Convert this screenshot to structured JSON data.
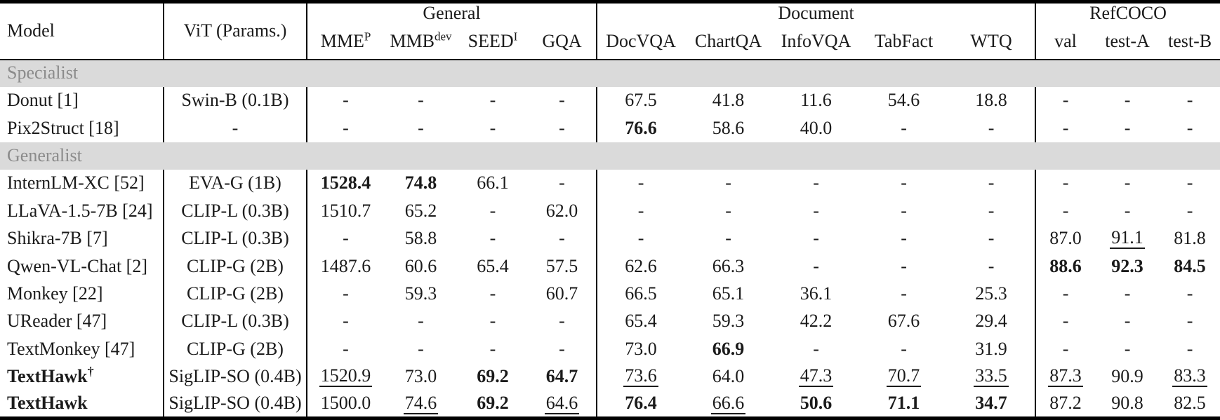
{
  "header": {
    "model_col": "Model",
    "vit_col": "ViT (Params.)",
    "groups": [
      {
        "label": "General",
        "cols": [
          {
            "text": "MME",
            "sup": "P"
          },
          {
            "text": "MMB",
            "sup": "dev"
          },
          {
            "text": "SEED",
            "sup": "I"
          },
          {
            "text": "GQA"
          }
        ]
      },
      {
        "label": "Document",
        "cols": [
          {
            "text": "DocVQA"
          },
          {
            "text": "ChartQA"
          },
          {
            "text": "InfoVQA"
          },
          {
            "text": "TabFact"
          },
          {
            "text": "WTQ"
          }
        ]
      },
      {
        "label": "RefCOCO",
        "cols": [
          {
            "text": "val"
          },
          {
            "text": "test-A"
          },
          {
            "text": "test-B"
          }
        ]
      }
    ]
  },
  "sections": [
    {
      "label": "Specialist",
      "rows": [
        {
          "model": {
            "text": "Donut [1]"
          },
          "vit": "Swin-B (0.1B)",
          "cells": [
            "-",
            "-",
            "-",
            "-",
            "67.5",
            "41.8",
            "11.6",
            "54.6",
            "18.8",
            "-",
            "-",
            "-"
          ]
        },
        {
          "model": {
            "text": "Pix2Struct [18]"
          },
          "vit": "-",
          "cells": [
            "-",
            "-",
            "-",
            "-",
            {
              "v": "76.6",
              "b": 1
            },
            "58.6",
            "40.0",
            "-",
            "-",
            "-",
            "-",
            "-"
          ]
        }
      ]
    },
    {
      "label": "Generalist",
      "rows": [
        {
          "model": {
            "text": "InternLM-XC [52]"
          },
          "vit": "EVA-G (1B)",
          "cells": [
            {
              "v": "1528.4",
              "b": 1
            },
            {
              "v": "74.8",
              "b": 1
            },
            "66.1",
            "-",
            "-",
            "-",
            "-",
            "-",
            "-",
            "-",
            "-",
            "-"
          ]
        },
        {
          "model": {
            "text": "LLaVA-1.5-7B [24]"
          },
          "vit": "CLIP-L (0.3B)",
          "cells": [
            "1510.7",
            "65.2",
            "-",
            "62.0",
            "-",
            "-",
            "-",
            "-",
            "-",
            "-",
            "-",
            "-"
          ]
        },
        {
          "model": {
            "text": "Shikra-7B [7]"
          },
          "vit": "CLIP-L (0.3B)",
          "cells": [
            "-",
            "58.8",
            "-",
            "-",
            "-",
            "-",
            "-",
            "-",
            "-",
            "87.0",
            {
              "v": "91.1",
              "u": 1
            },
            "81.8"
          ]
        },
        {
          "model": {
            "text": "Qwen-VL-Chat [2]"
          },
          "vit": "CLIP-G (2B)",
          "cells": [
            "1487.6",
            "60.6",
            "65.4",
            "57.5",
            "62.6",
            "66.3",
            "-",
            "-",
            "-",
            {
              "v": "88.6",
              "b": 1
            },
            {
              "v": "92.3",
              "b": 1
            },
            {
              "v": "84.5",
              "b": 1
            }
          ]
        },
        {
          "model": {
            "text": "Monkey [22]"
          },
          "vit": "CLIP-G (2B)",
          "cells": [
            "-",
            "59.3",
            "-",
            "60.7",
            "66.5",
            "65.1",
            "36.1",
            "-",
            "25.3",
            "-",
            "-",
            "-"
          ]
        },
        {
          "model": {
            "text": "UReader [47]"
          },
          "vit": "CLIP-L (0.3B)",
          "cells": [
            "-",
            "-",
            "-",
            "-",
            "65.4",
            "59.3",
            "42.2",
            "67.6",
            "29.4",
            "-",
            "-",
            "-"
          ]
        },
        {
          "model": {
            "text": "TextMonkey [47]"
          },
          "vit": "CLIP-G (2B)",
          "cells": [
            "-",
            "-",
            "-",
            "-",
            "73.0",
            {
              "v": "66.9",
              "b": 1
            },
            "-",
            "-",
            "31.9",
            "-",
            "-",
            "-"
          ]
        },
        {
          "model": {
            "text": "TextHawk",
            "b": 1,
            "sup": "†"
          },
          "vit": "SigLIP-SO (0.4B)",
          "cells": [
            {
              "v": "1520.9",
              "u": 1
            },
            "73.0",
            {
              "v": "69.2",
              "b": 1
            },
            {
              "v": "64.7",
              "b": 1
            },
            {
              "v": "73.6",
              "u": 1
            },
            "64.0",
            {
              "v": "47.3",
              "u": 1
            },
            {
              "v": "70.7",
              "u": 1
            },
            {
              "v": "33.5",
              "u": 1
            },
            {
              "v": "87.3",
              "u": 1
            },
            "90.9",
            {
              "v": "83.3",
              "u": 1
            }
          ]
        },
        {
          "model": {
            "text": "TextHawk",
            "b": 1
          },
          "vit": "SigLIP-SO (0.4B)",
          "cells": [
            "1500.0",
            {
              "v": "74.6",
              "u": 1
            },
            {
              "v": "69.2",
              "b": 1
            },
            {
              "v": "64.6",
              "u": 1
            },
            {
              "v": "76.4",
              "b": 1
            },
            {
              "v": "66.6",
              "u": 1
            },
            {
              "v": "50.6",
              "b": 1
            },
            {
              "v": "71.1",
              "b": 1
            },
            {
              "v": "34.7",
              "b": 1
            },
            "87.2",
            "90.8",
            "82.5"
          ]
        }
      ]
    }
  ],
  "colors": {
    "rule": "#000000",
    "section_bg": "#dadada",
    "section_text": "#8b8b8b",
    "text": "#1b1b1b"
  }
}
